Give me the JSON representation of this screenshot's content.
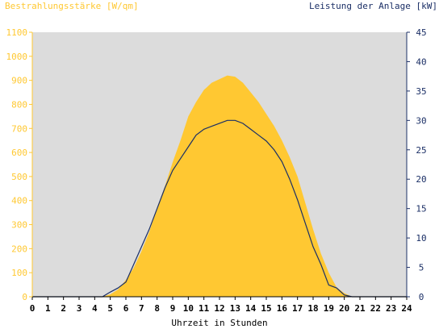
{
  "colors": {
    "irradiance": "#ffc832",
    "power": "#1b2f66",
    "plot_bg": "#dcdcdc",
    "left_axis": "#ffc832",
    "right_axis": "#1b2f66"
  },
  "chart_data": {
    "type": "area",
    "title_left": "Bestrahlungsstärke [W/qm]",
    "title_right": "Leistung der Anlage [kW]",
    "xlabel": "Uhrzeit in Stunden",
    "xlim": [
      0,
      24
    ],
    "x_ticks": [
      "0",
      "1",
      "2",
      "3",
      "4",
      "5",
      "6",
      "7",
      "8",
      "9",
      "10",
      "11",
      "12",
      "13",
      "14",
      "15",
      "16",
      "17",
      "18",
      "19",
      "20",
      "21",
      "22",
      "23",
      "24"
    ],
    "y_left": {
      "range": [
        0,
        1100
      ],
      "ticks": [
        "0",
        "100",
        "200",
        "300",
        "400",
        "500",
        "600",
        "700",
        "800",
        "900",
        "1000",
        "1100"
      ]
    },
    "y_right": {
      "range": [
        0,
        45
      ],
      "ticks": [
        "0",
        "5",
        "10",
        "15",
        "20",
        "25",
        "30",
        "35",
        "40",
        "45"
      ]
    },
    "grid": false,
    "series": [
      {
        "name": "Bestrahlungsstärke",
        "axis": "left",
        "style": "area",
        "x": [
          0,
          4.5,
          5,
          5.5,
          6,
          6.5,
          7,
          7.5,
          8,
          8.5,
          9,
          9.5,
          10,
          10.5,
          11,
          11.5,
          12,
          12.5,
          13,
          13.5,
          14,
          14.5,
          15,
          15.5,
          16,
          16.5,
          17,
          17.5,
          18,
          18.5,
          19,
          19.5,
          20,
          20.5,
          21,
          24
        ],
        "values": [
          0,
          0,
          10,
          30,
          70,
          120,
          190,
          270,
          370,
          460,
          560,
          650,
          750,
          810,
          860,
          890,
          905,
          920,
          915,
          890,
          850,
          810,
          760,
          710,
          650,
          580,
          500,
          390,
          280,
          180,
          100,
          40,
          15,
          0,
          0,
          0
        ]
      },
      {
        "name": "Leistung der Anlage",
        "axis": "right",
        "style": "line",
        "x": [
          0,
          4.5,
          5,
          5.5,
          6,
          6.5,
          7,
          7.5,
          8,
          8.5,
          9,
          9.5,
          10,
          10.5,
          11,
          11.5,
          12,
          12.5,
          13,
          13.5,
          14,
          14.5,
          15,
          15.5,
          16,
          16.5,
          17,
          17.5,
          18,
          18.5,
          19,
          19.5,
          20,
          20.5,
          21,
          24
        ],
        "values": [
          0,
          0,
          0.8,
          1.5,
          2.5,
          5.5,
          8.5,
          11.5,
          15.0,
          18.5,
          21.5,
          23.5,
          25.5,
          27.5,
          28.5,
          29.0,
          29.5,
          30.0,
          30.0,
          29.5,
          28.5,
          27.5,
          26.5,
          25.0,
          23.0,
          20.0,
          16.5,
          12.5,
          8.5,
          5.5,
          2.0,
          1.5,
          0.3,
          0,
          0,
          0
        ]
      }
    ]
  }
}
